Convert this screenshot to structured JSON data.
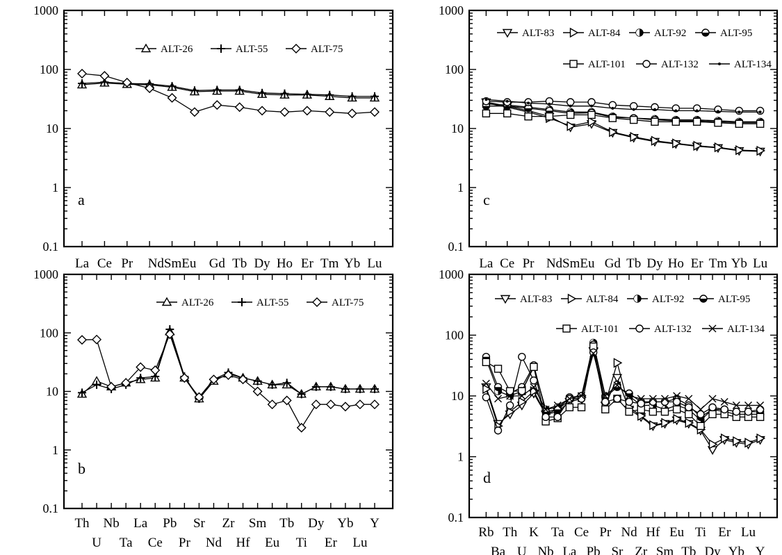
{
  "chart_data": [
    {
      "type": "line",
      "panel_label": "a",
      "y_scale": "log",
      "ylim": [
        0.1,
        1000
      ],
      "y_ticks": [
        "0.1",
        "1",
        "10",
        "100",
        "1000"
      ],
      "ylabel": "",
      "categories": [
        "La",
        "Ce",
        "Pr",
        "Nd",
        "Sm",
        "Eu",
        "Gd",
        "Tb",
        "Dy",
        "Ho",
        "Er",
        "Tm",
        "Yb",
        "Lu"
      ],
      "x_tick_text": [
        "La",
        "Ce",
        "Pr",
        "NdSmEu",
        "Gd",
        "Tb",
        "Dy",
        "Ho",
        "Er",
        "Tm",
        "Yb",
        "Lu"
      ],
      "series": [
        {
          "name": "ALT-26",
          "marker": "triangle",
          "values": [
            55,
            59,
            56,
            55,
            50,
            42,
            43,
            43,
            38,
            37,
            37,
            35,
            33,
            33
          ]
        },
        {
          "name": "ALT-55",
          "marker": "plus",
          "values": [
            58,
            61,
            58,
            57,
            52,
            44,
            45,
            45,
            40,
            39,
            38,
            37,
            35,
            35
          ]
        },
        {
          "name": "ALT-75",
          "marker": "diamond",
          "values": [
            85,
            78,
            60,
            48,
            33,
            19,
            25,
            23,
            20,
            19,
            20,
            19,
            18,
            19
          ]
        }
      ]
    },
    {
      "type": "line",
      "panel_label": "b",
      "y_scale": "log",
      "ylim": [
        0.1,
        1000
      ],
      "y_ticks": [
        "0.1",
        "1",
        "10",
        "100",
        "1000"
      ],
      "ylabel": "",
      "categories": [
        "Th",
        "U",
        "Nb",
        "Ta",
        "La",
        "Ce",
        "Pb",
        "Pr",
        "Sr",
        "Nd",
        "Zr",
        "Hf",
        "Sm",
        "Eu",
        "Tb",
        "Ti",
        "Dy",
        "Er",
        "Yb",
        "Lu",
        "Y"
      ],
      "x_tick_top": [
        "Th",
        "Nb",
        "La",
        "Pb",
        "Sr",
        "Zr",
        "Sm",
        "Tb",
        "Dy",
        "Yb",
        "Y"
      ],
      "x_tick_bottom": [
        "U",
        "Ta",
        "Ce",
        "Pr",
        "Nd",
        "Hf",
        "Eu",
        "Ti",
        "Er",
        "Lu"
      ],
      "series": [
        {
          "name": "ALT-26",
          "marker": "triangle",
          "values": [
            9,
            15,
            12,
            14,
            16,
            17,
            105,
            17,
            7.5,
            15,
            20,
            17,
            15,
            13,
            13,
            9,
            12,
            12,
            11,
            11,
            11
          ]
        },
        {
          "name": "ALT-55",
          "marker": "plus",
          "values": [
            9.5,
            13,
            11,
            13,
            17,
            18,
            115,
            18,
            7.5,
            16,
            21,
            17,
            15,
            13,
            14,
            9,
            12,
            12,
            11,
            11,
            11
          ]
        },
        {
          "name": "ALT-75",
          "marker": "diamond",
          "values": [
            76,
            77,
            12,
            14,
            26,
            23,
            95,
            17,
            8,
            16,
            19,
            16,
            10,
            6,
            7,
            2.4,
            6,
            6,
            5.5,
            6,
            6
          ]
        }
      ]
    },
    {
      "type": "line",
      "panel_label": "c",
      "y_scale": "log",
      "ylim": [
        0.1,
        1000
      ],
      "y_ticks": [
        "0.1",
        "1",
        "10",
        "100",
        "1000"
      ],
      "ylabel": "",
      "categories": [
        "La",
        "Ce",
        "Pr",
        "Nd",
        "Sm",
        "Eu",
        "Gd",
        "Tb",
        "Dy",
        "Ho",
        "Er",
        "Tm",
        "Yb",
        "Lu"
      ],
      "x_tick_text": [
        "La",
        "Ce",
        "Pr",
        "NdSmEu",
        "Gd",
        "Tb",
        "Dy",
        "Ho",
        "Er",
        "Tm",
        "Yb",
        "Lu"
      ],
      "series": [
        {
          "name": "ALT-83",
          "marker": "triangle-down",
          "values": [
            28,
            24,
            20,
            16,
            10.5,
            12,
            8.5,
            7,
            6,
            5.5,
            5,
            4.7,
            4.2,
            4.1
          ]
        },
        {
          "name": "ALT-84",
          "marker": "triangle-right",
          "values": [
            27,
            23,
            19,
            15,
            11,
            13,
            8.7,
            7.2,
            6.2,
            5.6,
            5.1,
            4.8,
            4.3,
            4.2
          ]
        },
        {
          "name": "ALT-92",
          "marker": "circle-halffilled",
          "values": [
            26,
            25,
            23,
            21,
            19,
            19,
            16,
            15,
            14.5,
            14,
            14,
            13.5,
            13,
            13
          ]
        },
        {
          "name": "ALT-95",
          "marker": "circle-halffilled-h",
          "values": [
            24,
            24,
            22,
            20,
            18,
            18.5,
            15.5,
            15,
            14,
            13.5,
            13.5,
            13,
            12.5,
            12.5
          ]
        },
        {
          "name": "ALT-101",
          "marker": "square",
          "values": [
            18,
            18,
            16,
            16,
            17,
            17,
            15,
            14,
            13,
            13,
            13,
            12.5,
            12,
            12
          ]
        },
        {
          "name": "ALT-132",
          "marker": "circle",
          "values": [
            29,
            28,
            28,
            29,
            28,
            28,
            25,
            24,
            23,
            22,
            22,
            21,
            20,
            20
          ]
        },
        {
          "name": "ALT-134",
          "marker": "dot",
          "values": [
            31,
            29,
            27,
            26,
            24,
            24,
            22,
            21,
            21,
            20,
            20,
            19.5,
            19,
            19
          ]
        }
      ],
      "legend_text": [
        "ALT-83",
        "ALT-84",
        "ALT-92",
        "ALT-95",
        "ALT-101",
        "ALT-132",
        "ALT-134"
      ]
    },
    {
      "type": "line",
      "panel_label": "d",
      "y_scale": "log",
      "ylim": [
        0.1,
        1000
      ],
      "y_ticks": [
        "0.1",
        "1",
        "10",
        "100",
        "1000"
      ],
      "ylabel": "",
      "categories": [
        "Rb",
        "Ba",
        "Th",
        "U",
        "K",
        "Nb",
        "Ta",
        "La",
        "Ce",
        "Pb",
        "Pr",
        "Sr",
        "Nd",
        "Zr",
        "Hf",
        "Sm",
        "Eu",
        "Tb",
        "Ti",
        "Dy",
        "Er",
        "Yb",
        "Lu",
        "Y"
      ],
      "x_tick_top": [
        "Rb",
        "Th",
        "K",
        "Ta",
        "Ce",
        "Pr",
        "Nd",
        "Hf",
        "Eu",
        "Ti",
        "Er",
        "Lu"
      ],
      "x_tick_bottom": [
        "Ba",
        "U",
        "Nb",
        "La",
        "Pb",
        "Sr",
        "Zr",
        "Sm",
        "Tb",
        "Dy",
        "Yb",
        "Y"
      ],
      "series": [
        {
          "name": "ALT-83",
          "marker": "triangle-down",
          "values": [
            14,
            3.5,
            5,
            7,
            11,
            5,
            5.5,
            8,
            9,
            55,
            7,
            20,
            6,
            4.5,
            3.2,
            3.5,
            4,
            3.5,
            2.7,
            1.3,
            1.9,
            1.7,
            1.6,
            1.9
          ]
        },
        {
          "name": "ALT-84",
          "marker": "triangle-right",
          "values": [
            13,
            3.2,
            5.5,
            8,
            12,
            5,
            6,
            8.5,
            9.5,
            60,
            7.5,
            35,
            6.5,
            4.7,
            3.3,
            3.6,
            4.2,
            3.6,
            2.8,
            1.6,
            2.0,
            1.8,
            1.7,
            2.0
          ]
        },
        {
          "name": "ALT-92",
          "marker": "circle-halffilled",
          "values": [
            40,
            12,
            10,
            12,
            30,
            6,
            6.5,
            9,
            9,
            75,
            10,
            15,
            10,
            7,
            7,
            6,
            7,
            6,
            4,
            6,
            5.5,
            5,
            5,
            5
          ]
        },
        {
          "name": "ALT-95",
          "marker": "circle-halffilled-h",
          "values": [
            44,
            14,
            11,
            14,
            32,
            5.5,
            6,
            9.5,
            10,
            70,
            9.5,
            14,
            11,
            8,
            8,
            8,
            9,
            7,
            4.5,
            6,
            6,
            5.5,
            5.5,
            5.5
          ]
        },
        {
          "name": "ALT-101",
          "marker": "square",
          "values": [
            36,
            28,
            12,
            12,
            30,
            3.8,
            4.3,
            6.5,
            6.5,
            65,
            6,
            9,
            5.5,
            6,
            5.5,
            5.5,
            6,
            5,
            3.2,
            5,
            5,
            4.5,
            4.5,
            4.5
          ]
        },
        {
          "name": "ALT-132",
          "marker": "circle",
          "values": [
            9.5,
            2.7,
            7,
            44,
            18,
            4.5,
            4.5,
            9,
            9,
            52,
            8,
            9,
            8,
            7.5,
            8,
            8,
            8,
            6.5,
            5,
            6.5,
            6,
            5.5,
            5.5,
            6
          ]
        },
        {
          "name": "ALT-134",
          "marker": "x",
          "values": [
            16,
            9,
            10,
            10,
            14,
            6,
            7,
            9,
            10,
            50,
            10,
            15,
            10,
            9,
            9,
            9,
            10,
            9,
            6,
            9,
            8,
            7,
            7,
            7
          ]
        }
      ],
      "legend_text": [
        "ALT-83",
        "ALT-84",
        "ALT-92",
        "ALT-95",
        "ALT-101",
        "ALT-132",
        "ALT-134"
      ]
    }
  ]
}
